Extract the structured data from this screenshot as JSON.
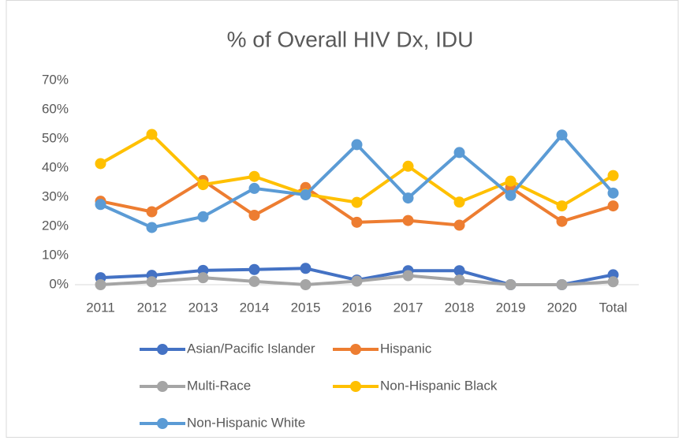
{
  "chart_data": {
    "type": "line",
    "title": "% of Overall HIV Dx, IDU",
    "categories": [
      "2011",
      "2012",
      "2013",
      "2014",
      "2015",
      "2016",
      "2017",
      "2018",
      "2019",
      "2020",
      "Total"
    ],
    "series": [
      {
        "name": "Asian/Pacific Islander",
        "color": "#4472c4",
        "values": [
          2.4,
          3.2,
          4.9,
          5.2,
          5.6,
          1.6,
          4.8,
          4.8,
          0,
          0,
          3.4
        ]
      },
      {
        "name": "Hispanic",
        "color": "#ed7d31",
        "values": [
          28.6,
          25,
          35.7,
          23.8,
          33.3,
          21.4,
          22,
          20.4,
          33.3,
          21.7,
          27
        ]
      },
      {
        "name": "Multi-Race",
        "color": "#a5a5a5",
        "values": [
          0,
          1,
          2.4,
          1.1,
          0,
          1.2,
          3.1,
          1.6,
          0,
          0,
          1
        ]
      },
      {
        "name": "Non-Hispanic Black",
        "color": "#ffc000",
        "values": [
          41.5,
          51.5,
          34.3,
          37.1,
          31,
          28.2,
          40.6,
          28.3,
          35.5,
          27,
          37.4
        ]
      },
      {
        "name": "Non-Hispanic White",
        "color": "#5b9bd5",
        "values": [
          27.5,
          19.6,
          23.3,
          33,
          30.8,
          48,
          29.7,
          45.3,
          30.6,
          51.3,
          31.4
        ]
      }
    ],
    "ylim": [
      0,
      70
    ],
    "yticks": [
      {
        "value": 0,
        "label": "0%"
      },
      {
        "value": 10,
        "label": "10%"
      },
      {
        "value": 20,
        "label": "20%"
      },
      {
        "value": 30,
        "label": "30%"
      },
      {
        "value": 40,
        "label": "40%"
      },
      {
        "value": 50,
        "label": "50%"
      },
      {
        "value": 60,
        "label": "60%"
      },
      {
        "value": 70,
        "label": "70%"
      }
    ],
    "grid": false
  }
}
